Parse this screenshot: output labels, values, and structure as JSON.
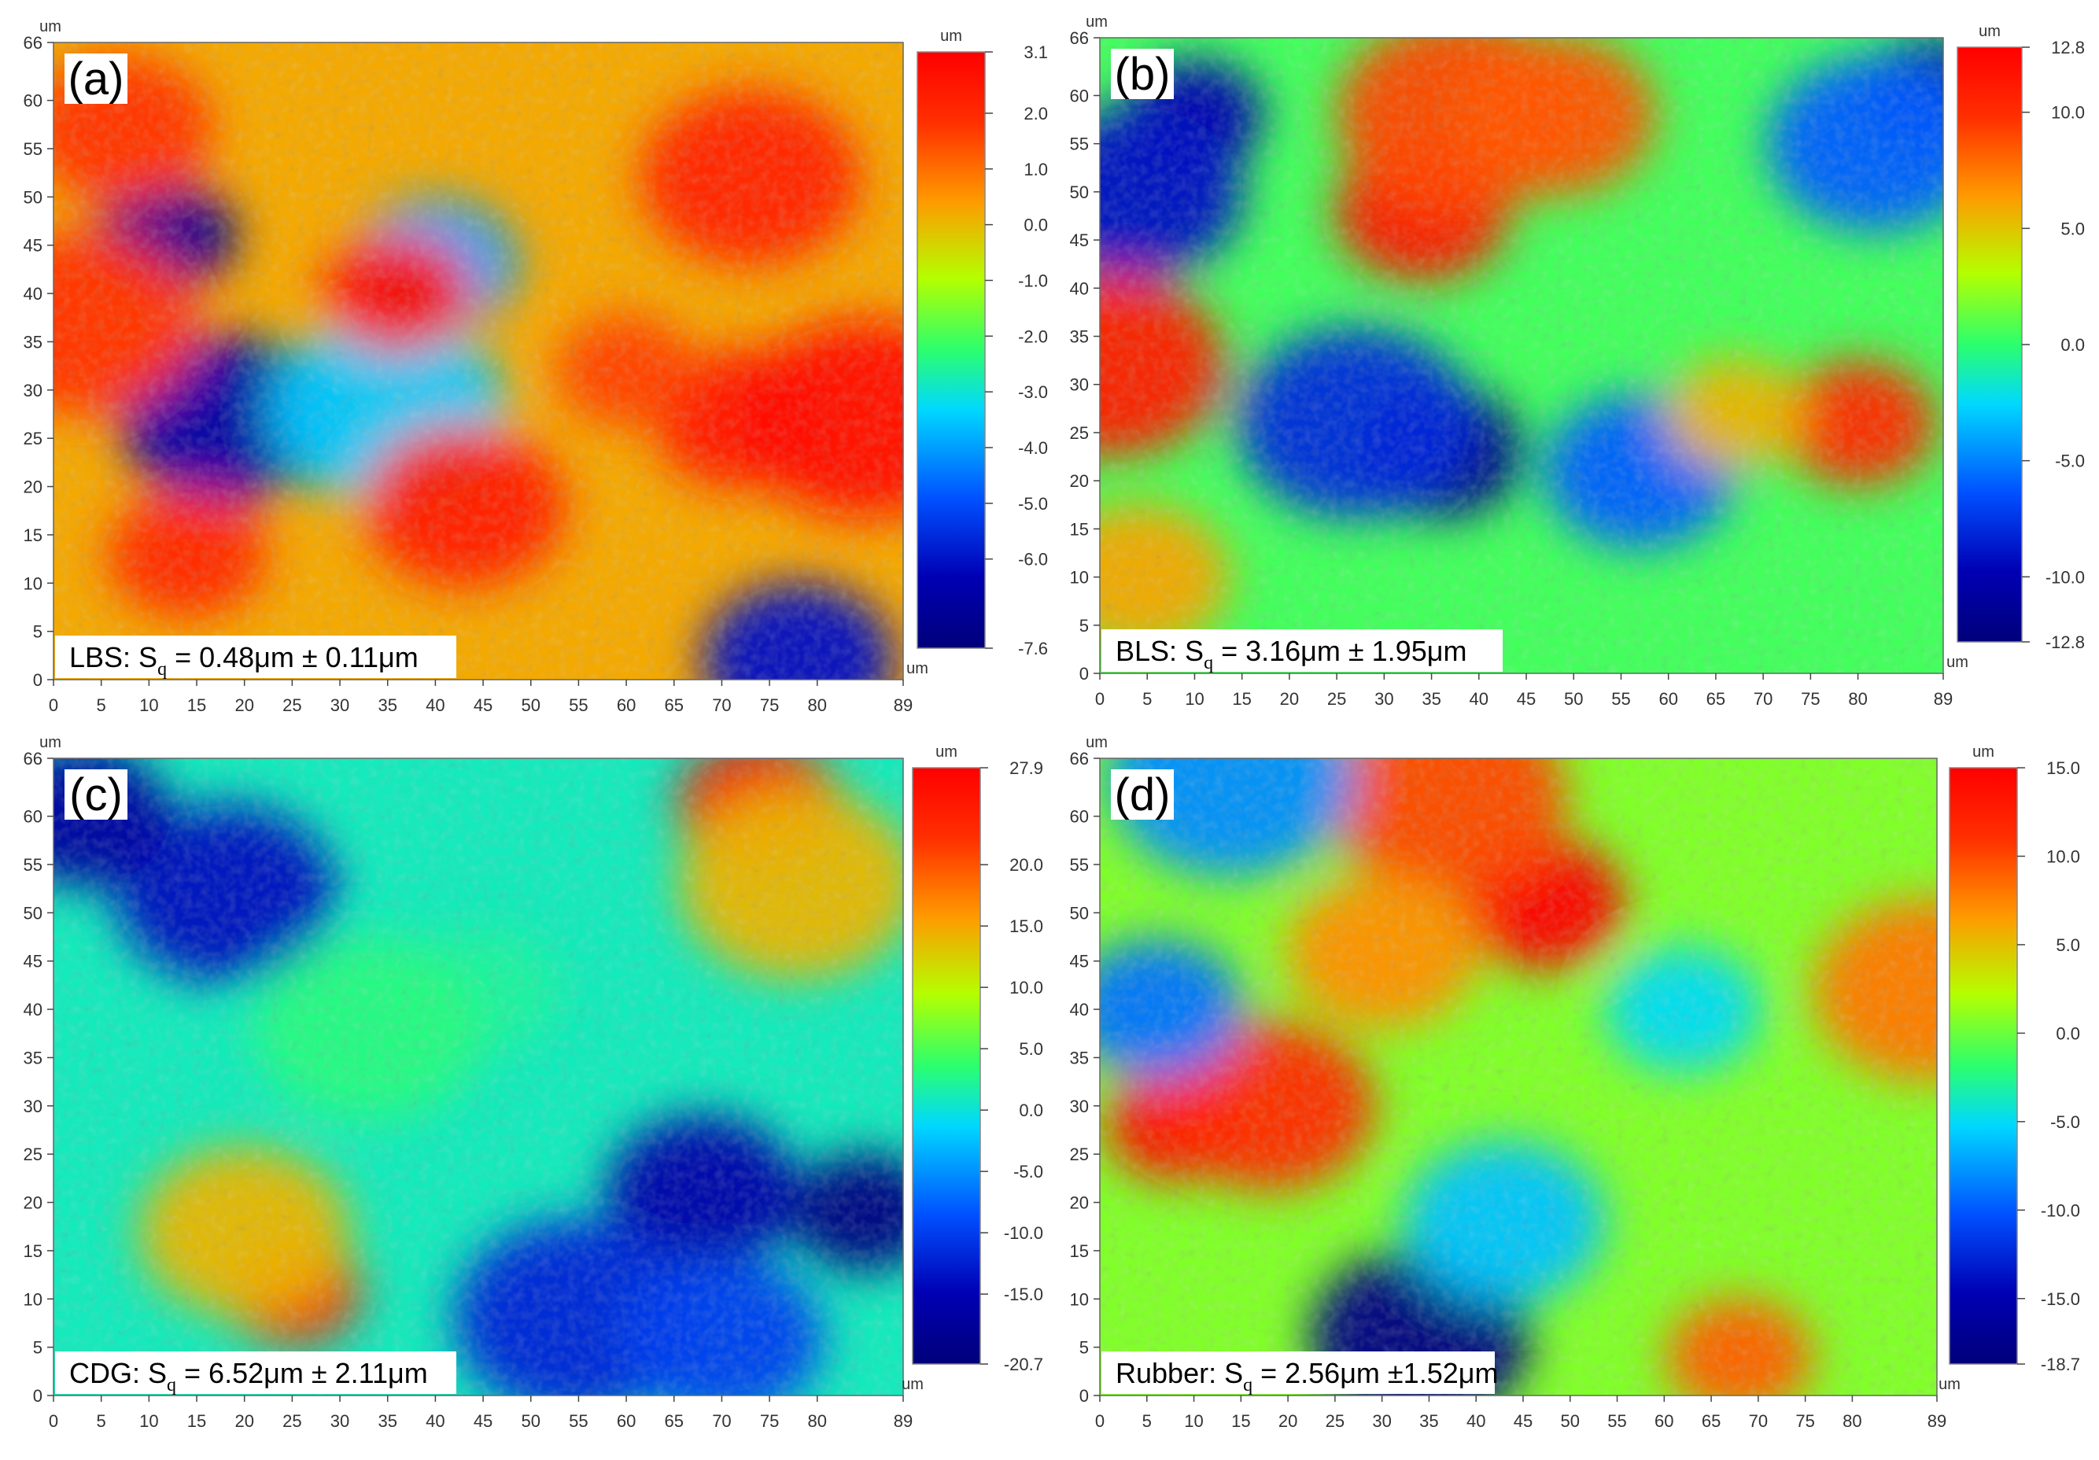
{
  "chart_data": [
    {
      "type": "heatmap",
      "panel_label": "(a)",
      "caption": {
        "prefix": "LBS: S",
        "subscript": "q",
        "suffix": " = 0.48μm ± 0.11μm"
      },
      "x_ticks": [
        "0",
        "5",
        "10",
        "15",
        "20",
        "25",
        "30",
        "35",
        "40",
        "45",
        "50",
        "55",
        "60",
        "65",
        "70",
        "75",
        "80",
        "89"
      ],
      "y_ticks": [
        "0",
        "5",
        "10",
        "15",
        "20",
        "25",
        "30",
        "35",
        "40",
        "45",
        "50",
        "55",
        "60",
        "66"
      ],
      "xlim": [
        0,
        89
      ],
      "ylim": [
        0,
        66
      ],
      "axis_unit": "um",
      "colorbar": {
        "unit": "um",
        "min": -7.6,
        "max": 3.1,
        "ticks": [
          "3.1",
          "2.0",
          "1.0",
          "0.0",
          "-1.0",
          "-2.0",
          "-3.0",
          "-4.0",
          "-5.0",
          "-6.0",
          "-7.6"
        ]
      },
      "features": [
        {
          "x": 12,
          "y": 46,
          "z": -7.0
        },
        {
          "x": 18,
          "y": 27,
          "z": -6.5
        },
        {
          "x": 40,
          "y": 43,
          "z": -4.0
        },
        {
          "x": 35,
          "y": 28,
          "z": -3.5
        },
        {
          "x": 78,
          "y": 2,
          "z": -6.0
        },
        {
          "x": 36,
          "y": 40,
          "z": 2.8
        },
        {
          "x": 73,
          "y": 52,
          "z": 2.2
        },
        {
          "x": 72,
          "y": 27,
          "z": 2.5
        },
        {
          "x": 85,
          "y": 27,
          "z": 2.8
        },
        {
          "x": 43,
          "y": 18,
          "z": 2.3
        },
        {
          "x": 14,
          "y": 13,
          "z": 2.0
        },
        {
          "x": 3,
          "y": 37,
          "z": 1.8
        },
        {
          "x": 7,
          "y": 57,
          "z": 1.8
        },
        {
          "x": 60,
          "y": 32,
          "z": 1.6
        }
      ]
    },
    {
      "type": "heatmap",
      "panel_label": "(b)",
      "caption": {
        "prefix": "BLS: S",
        "subscript": "q",
        "suffix": " = 3.16μm ± 1.95μm"
      },
      "x_ticks": [
        "0",
        "5",
        "10",
        "15",
        "20",
        "25",
        "30",
        "35",
        "40",
        "45",
        "50",
        "55",
        "60",
        "65",
        "70",
        "75",
        "80",
        "89"
      ],
      "y_ticks": [
        "0",
        "5",
        "10",
        "15",
        "20",
        "25",
        "30",
        "35",
        "40",
        "45",
        "50",
        "55",
        "60",
        "66"
      ],
      "xlim": [
        0,
        89
      ],
      "ylim": [
        0,
        66
      ],
      "axis_unit": "um",
      "colorbar": {
        "unit": "um",
        "min": -12.8,
        "max": 12.8,
        "ticks": [
          "12.8",
          "10.0",
          "5.0",
          "0.0",
          "-5.0",
          "-10.0",
          "-12.8"
        ]
      },
      "features": [
        {
          "x": 10,
          "y": 58,
          "z": -10.0
        },
        {
          "x": 4,
          "y": 50,
          "z": -9.0
        },
        {
          "x": 36,
          "y": 23,
          "z": -12.0
        },
        {
          "x": 27,
          "y": 26,
          "z": -8.0
        },
        {
          "x": 57,
          "y": 21,
          "z": -6.0
        },
        {
          "x": 88,
          "y": 60,
          "z": -11.0
        },
        {
          "x": 82,
          "y": 55,
          "z": -6.0
        },
        {
          "x": 34,
          "y": 48,
          "z": 11.5
        },
        {
          "x": 38,
          "y": 58,
          "z": 9.0
        },
        {
          "x": 48,
          "y": 58,
          "z": 8.5
        },
        {
          "x": 80,
          "y": 26,
          "z": 10.0
        },
        {
          "x": 1,
          "y": 32,
          "z": 11.0
        },
        {
          "x": 4,
          "y": 10,
          "z": 6.0
        },
        {
          "x": 67,
          "y": 27,
          "z": 5.5
        }
      ]
    },
    {
      "type": "heatmap",
      "panel_label": "(c)",
      "caption": {
        "prefix": "CDG: S",
        "subscript": "q",
        "suffix": " = 6.52μm ± 2.11μm"
      },
      "x_ticks": [
        "0",
        "5",
        "10",
        "15",
        "20",
        "25",
        "30",
        "35",
        "40",
        "45",
        "50",
        "55",
        "60",
        "65",
        "70",
        "75",
        "80",
        "89"
      ],
      "y_ticks": [
        "0",
        "5",
        "10",
        "15",
        "20",
        "25",
        "30",
        "35",
        "40",
        "45",
        "50",
        "55",
        "60",
        "66"
      ],
      "xlim": [
        0,
        89
      ],
      "ylim": [
        0,
        66
      ],
      "axis_unit": "um",
      "colorbar": {
        "unit": "um",
        "min": -20.7,
        "max": 27.9,
        "ticks": [
          "27.9",
          "20.0",
          "15.0",
          "10.0",
          "5.0",
          "0.0",
          "-5.0",
          "-10.0",
          "-15.0",
          "-20.7"
        ]
      },
      "features": [
        {
          "x": 25,
          "y": 11,
          "z": 25.0
        },
        {
          "x": 20,
          "y": 17,
          "z": 14.0
        },
        {
          "x": 74,
          "y": 61,
          "z": 26.0
        },
        {
          "x": 78,
          "y": 53,
          "z": 14.0
        },
        {
          "x": 68,
          "y": 21,
          "z": -16.0
        },
        {
          "x": 85,
          "y": 19,
          "z": -20.0
        },
        {
          "x": 18,
          "y": 52,
          "z": -14.0
        },
        {
          "x": 3,
          "y": 60,
          "z": -17.0
        },
        {
          "x": 55,
          "y": 8,
          "z": -12.0
        },
        {
          "x": 70,
          "y": 6,
          "z": -10.0
        },
        {
          "x": 45,
          "y": 42,
          "z": 2.0
        },
        {
          "x": 33,
          "y": 38,
          "z": 3.0
        }
      ]
    },
    {
      "type": "heatmap",
      "panel_label": "(d)",
      "caption": {
        "prefix": "Rubber: S",
        "subscript": "q",
        "suffix": " = 2.56μm ±1.52μm"
      },
      "x_ticks": [
        "0",
        "5",
        "10",
        "15",
        "20",
        "25",
        "30",
        "35",
        "40",
        "45",
        "50",
        "55",
        "60",
        "65",
        "70",
        "75",
        "80",
        "89"
      ],
      "y_ticks": [
        "0",
        "5",
        "10",
        "15",
        "20",
        "25",
        "30",
        "35",
        "40",
        "45",
        "50",
        "55",
        "60",
        "66"
      ],
      "xlim": [
        0,
        89
      ],
      "ylim": [
        0,
        66
      ],
      "axis_unit": "um",
      "colorbar": {
        "unit": "um",
        "min": -18.7,
        "max": 15.0,
        "ticks": [
          "15.0",
          "10.0",
          "5.0",
          "0.0",
          "-5.0",
          "-10.0",
          "-15.0",
          "-18.7"
        ]
      },
      "features": [
        {
          "x": 8,
          "y": 28,
          "z": 13.5
        },
        {
          "x": 18,
          "y": 30,
          "z": 11.5
        },
        {
          "x": 47,
          "y": 51,
          "z": 14.5
        },
        {
          "x": 37,
          "y": 62,
          "z": 10.0
        },
        {
          "x": 30,
          "y": 46,
          "z": 7.0
        },
        {
          "x": 68,
          "y": 4,
          "z": 9.0
        },
        {
          "x": 34,
          "y": 6,
          "z": -18.0
        },
        {
          "x": 6,
          "y": 40,
          "z": -9.0
        },
        {
          "x": 14,
          "y": 64,
          "z": -8.0
        },
        {
          "x": 43,
          "y": 18,
          "z": -6.0
        },
        {
          "x": 62,
          "y": 40,
          "z": -5.0
        },
        {
          "x": 88,
          "y": 42,
          "z": 8.0
        }
      ]
    }
  ]
}
